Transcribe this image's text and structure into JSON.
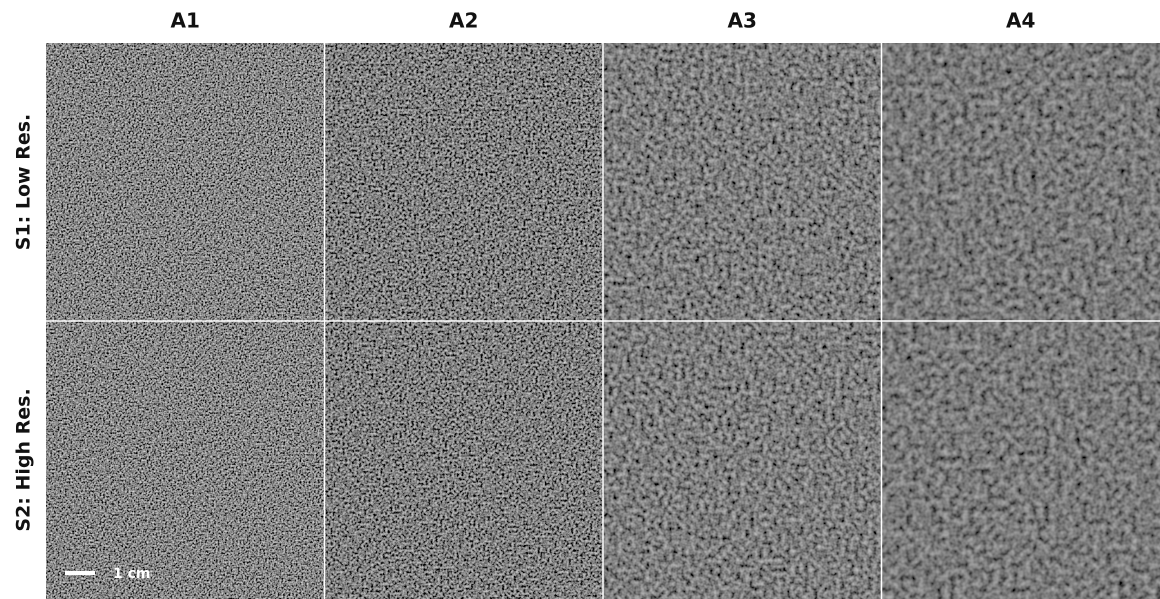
{
  "columns": [
    "A1",
    "A2",
    "A3",
    "A4"
  ],
  "rows": [
    "S1: Low Res.",
    "S2: High Res."
  ],
  "scale_bar": {
    "label": "1 cm"
  }
}
